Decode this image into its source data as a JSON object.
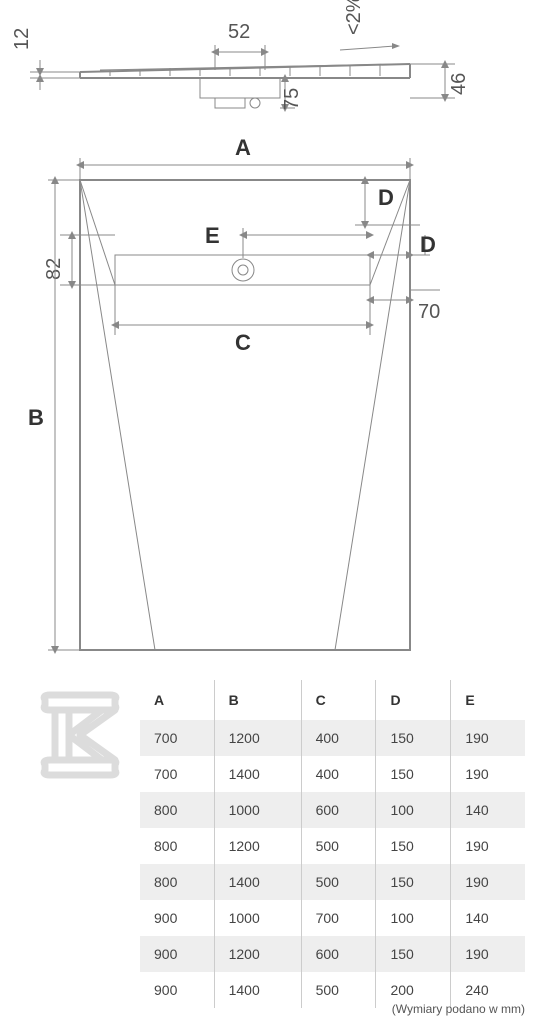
{
  "top_view": {
    "d12": "12",
    "d52": "52",
    "d75": "75",
    "d46": "46",
    "slope": "<2%"
  },
  "plan_view": {
    "A": "A",
    "B": "B",
    "C": "C",
    "D_top": "D",
    "D_side": "D",
    "E": "E",
    "d82": "82",
    "d70": "70"
  },
  "table": {
    "headers": [
      "A",
      "B",
      "C",
      "D",
      "E"
    ],
    "rows": [
      [
        "700",
        "1200",
        "400",
        "150",
        "190"
      ],
      [
        "700",
        "1400",
        "400",
        "150",
        "190"
      ],
      [
        "800",
        "1000",
        "600",
        "100",
        "140"
      ],
      [
        "800",
        "1200",
        "500",
        "150",
        "190"
      ],
      [
        "800",
        "1400",
        "500",
        "150",
        "190"
      ],
      [
        "900",
        "1000",
        "700",
        "100",
        "140"
      ],
      [
        "900",
        "1200",
        "600",
        "150",
        "190"
      ],
      [
        "900",
        "1400",
        "500",
        "200",
        "240"
      ]
    ]
  },
  "footnote": "(Wymiary podano w mm)",
  "colors": {
    "line": "#888888",
    "text": "#555555",
    "bold_text": "#333333",
    "row_alt": "#eeeeee",
    "logo": "#dcdcdc"
  }
}
